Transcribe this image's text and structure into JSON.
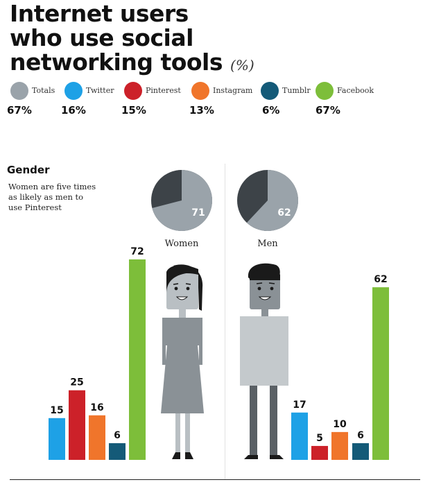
{
  "title": {
    "line1": "Internet users",
    "line2": "who use social",
    "line3": "networking tools",
    "unit": "(%)"
  },
  "legend": [
    {
      "name": "Totals",
      "value": "67%",
      "color": "#9aa3aa"
    },
    {
      "name": "Twitter",
      "value": "16%",
      "color": "#1ea1e6"
    },
    {
      "name": "Pinterest",
      "value": "15%",
      "color": "#cc2129"
    },
    {
      "name": "Instagram",
      "value": "13%",
      "color": "#f0752b"
    },
    {
      "name": "Tumblr",
      "value": "6%",
      "color": "#145a78"
    },
    {
      "name": "Facebook",
      "value": "67%",
      "color": "#7dbe3a"
    }
  ],
  "section": {
    "title": "Gender",
    "note": "Women are five times as likely as men to use Pinterest"
  },
  "chart_data": [
    {
      "type": "pie",
      "title": "Women",
      "value": 71,
      "value_label": "71",
      "colors": {
        "share": "#9aa3aa",
        "rest": "#3d4348"
      }
    },
    {
      "type": "pie",
      "title": "Men",
      "value": 62,
      "value_label": "62",
      "colors": {
        "share": "#9aa3aa",
        "rest": "#3d4348"
      }
    },
    {
      "type": "bar",
      "title": "Women",
      "categories": [
        "Twitter",
        "Pinterest",
        "Instagram",
        "Tumblr",
        "Facebook"
      ],
      "values": [
        15,
        25,
        16,
        6,
        72
      ],
      "colors": [
        "#1ea1e6",
        "#cc2129",
        "#f0752b",
        "#145a78",
        "#7dbe3a"
      ],
      "ylim": [
        0,
        72
      ]
    },
    {
      "type": "bar",
      "title": "Men",
      "categories": [
        "Twitter",
        "Pinterest",
        "Instagram",
        "Tumblr",
        "Facebook"
      ],
      "values": [
        17,
        5,
        10,
        6,
        62
      ],
      "colors": [
        "#1ea1e6",
        "#cc2129",
        "#f0752b",
        "#145a78",
        "#7dbe3a"
      ],
      "ylim": [
        0,
        72
      ]
    }
  ]
}
